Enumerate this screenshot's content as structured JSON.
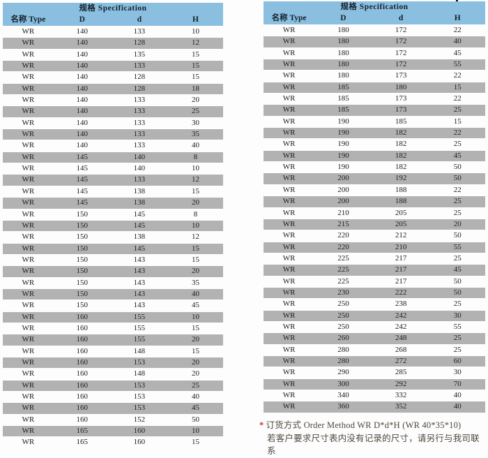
{
  "colors": {
    "header_blue": "#8abfe0",
    "row_gray": "#b2b2b2",
    "accent_red": "#c23b22"
  },
  "left_table": {
    "title": "规格 Specification",
    "columns": [
      "名称 Type",
      "D",
      "d",
      "H"
    ],
    "rows": [
      [
        "WR",
        "140",
        "133",
        "10"
      ],
      [
        "WR",
        "140",
        "128",
        "12"
      ],
      [
        "WR",
        "140",
        "135",
        "15"
      ],
      [
        "WR",
        "140",
        "133",
        "15"
      ],
      [
        "WR",
        "140",
        "128",
        "15"
      ],
      [
        "WR",
        "140",
        "128",
        "18"
      ],
      [
        "WR",
        "140",
        "133",
        "20"
      ],
      [
        "WR",
        "140",
        "133",
        "25"
      ],
      [
        "WR",
        "140",
        "133",
        "30"
      ],
      [
        "WR",
        "140",
        "133",
        "35"
      ],
      [
        "WR",
        "140",
        "133",
        "40"
      ],
      [
        "WR",
        "145",
        "140",
        "8"
      ],
      [
        "WR",
        "145",
        "140",
        "10"
      ],
      [
        "WR",
        "145",
        "133",
        "12"
      ],
      [
        "WR",
        "145",
        "138",
        "15"
      ],
      [
        "WR",
        "145",
        "138",
        "20"
      ],
      [
        "WR",
        "150",
        "145",
        "8"
      ],
      [
        "WR",
        "150",
        "145",
        "10"
      ],
      [
        "WR",
        "150",
        "138",
        "12"
      ],
      [
        "WR",
        "150",
        "145",
        "15"
      ],
      [
        "WR",
        "150",
        "143",
        "15"
      ],
      [
        "WR",
        "150",
        "143",
        "20"
      ],
      [
        "WR",
        "150",
        "143",
        "35"
      ],
      [
        "WR",
        "150",
        "143",
        "40"
      ],
      [
        "WR",
        "150",
        "143",
        "45"
      ],
      [
        "WR",
        "160",
        "155",
        "10"
      ],
      [
        "WR",
        "160",
        "155",
        "15"
      ],
      [
        "WR",
        "160",
        "155",
        "20"
      ],
      [
        "WR",
        "160",
        "148",
        "15"
      ],
      [
        "WR",
        "160",
        "153",
        "20"
      ],
      [
        "WR",
        "160",
        "148",
        "20"
      ],
      [
        "WR",
        "160",
        "153",
        "25"
      ],
      [
        "WR",
        "160",
        "153",
        "40"
      ],
      [
        "WR",
        "160",
        "153",
        "45"
      ],
      [
        "WR",
        "160",
        "152",
        "50"
      ],
      [
        "WR",
        "165",
        "160",
        "10"
      ],
      [
        "WR",
        "165",
        "160",
        "15"
      ]
    ]
  },
  "right_table": {
    "title": "规格 Specification",
    "columns": [
      "名称 Type",
      "D",
      "d",
      "H"
    ],
    "rows": [
      [
        "WR",
        "180",
        "172",
        "22"
      ],
      [
        "WR",
        "180",
        "172",
        "40"
      ],
      [
        "WR",
        "180",
        "172",
        "45"
      ],
      [
        "WR",
        "180",
        "172",
        "55"
      ],
      [
        "WR",
        "180",
        "173",
        "22"
      ],
      [
        "WR",
        "185",
        "180",
        "15"
      ],
      [
        "WR",
        "185",
        "173",
        "22"
      ],
      [
        "WR",
        "185",
        "173",
        "25"
      ],
      [
        "WR",
        "190",
        "185",
        "15"
      ],
      [
        "WR",
        "190",
        "182",
        "22"
      ],
      [
        "WR",
        "190",
        "182",
        "25"
      ],
      [
        "WR",
        "190",
        "182",
        "45"
      ],
      [
        "WR",
        "190",
        "182",
        "50"
      ],
      [
        "WR",
        "200",
        "192",
        "50"
      ],
      [
        "WR",
        "200",
        "188",
        "22"
      ],
      [
        "WR",
        "200",
        "188",
        "25"
      ],
      [
        "WR",
        "210",
        "205",
        "25"
      ],
      [
        "WR",
        "215",
        "205",
        "20"
      ],
      [
        "WR",
        "220",
        "212",
        "50"
      ],
      [
        "WR",
        "220",
        "210",
        "55"
      ],
      [
        "WR",
        "225",
        "217",
        "25"
      ],
      [
        "WR",
        "225",
        "217",
        "45"
      ],
      [
        "WR",
        "225",
        "217",
        "50"
      ],
      [
        "WR",
        "230",
        "222",
        "50"
      ],
      [
        "WR",
        "250",
        "238",
        "25"
      ],
      [
        "WR",
        "250",
        "242",
        "30"
      ],
      [
        "WR",
        "250",
        "242",
        "55"
      ],
      [
        "WR",
        "260",
        "248",
        "25"
      ],
      [
        "WR",
        "280",
        "268",
        "25"
      ],
      [
        "WR",
        "280",
        "272",
        "60"
      ],
      [
        "WR",
        "290",
        "285",
        "30"
      ],
      [
        "WR",
        "300",
        "292",
        "70"
      ],
      [
        "WR",
        "340",
        "332",
        "40"
      ],
      [
        "WR",
        "360",
        "352",
        "40"
      ]
    ]
  },
  "footer": {
    "marker": "*",
    "line1": "订货方式 Order Method  WR  D*d*H  (WR 40*35*10)",
    "line2": "若客户要求尺寸表内没有记录的尺寸，请另行与我司联系"
  }
}
